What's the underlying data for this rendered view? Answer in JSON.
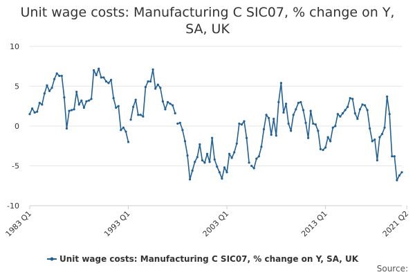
{
  "title": "Unit wage costs: Manufacturing C SIC07, % change on Y, SA, UK",
  "source_label": "Source:",
  "colors": {
    "series": "#206095",
    "grid": "#e6e6e6",
    "axis": "#cccccc",
    "text": "#333333"
  },
  "chart_data": {
    "type": "line",
    "title": "Unit wage costs: Manufacturing C SIC07, % change on Y, SA, UK",
    "xlabel": "",
    "ylabel": "",
    "ylim": [
      -10,
      10
    ],
    "yticks": [
      -10,
      -5,
      0,
      5,
      10
    ],
    "xticks": [
      "1983 Q1",
      "1993 Q1",
      "2003 Q1",
      "2013 Q1",
      "2021 Q2"
    ],
    "x_start": "1983 Q1",
    "x_end": "2021 Q2",
    "gaps_after_index": [
      40,
      59,
      89,
      118
    ],
    "legend_position": "bottom",
    "series": [
      {
        "name": "Unit wage costs: Manufacturing C SIC07, % change on Y, SA, UK",
        "values": [
          1.5,
          2.2,
          1.7,
          1.8,
          2.9,
          2.7,
          4.1,
          5.1,
          4.4,
          4.8,
          5.9,
          6.6,
          6.3,
          6.3,
          3.6,
          -0.3,
          1.9,
          2.0,
          2.1,
          4.3,
          2.7,
          3.2,
          2.3,
          3.1,
          3.2,
          3.4,
          7.0,
          6.4,
          7.2,
          6.1,
          6.1,
          5.6,
          5.4,
          5.8,
          3.5,
          2.3,
          2.5,
          -0.5,
          -0.2,
          -0.7,
          -2.0,
          0.8,
          2.4,
          3.3,
          1.4,
          1.4,
          1.2,
          4.9,
          5.6,
          5.6,
          7.1,
          4.7,
          5.2,
          4.8,
          3.1,
          2.1,
          3.0,
          2.8,
          2.6,
          1.6,
          0.3,
          0.4,
          -0.5,
          -1.9,
          -3.7,
          -6.7,
          -5.6,
          -4.5,
          -3.9,
          -2.3,
          -4.3,
          -4.6,
          -3.5,
          -4.5,
          -1.5,
          -4.2,
          -5.1,
          -5.8,
          -6.6,
          -5.2,
          -5.8,
          -3.5,
          -4.0,
          -3.3,
          -2.2,
          0.3,
          0.2,
          0.6,
          -1.5,
          -4.6,
          -5.0,
          -5.3,
          -4.1,
          -3.8,
          -2.6,
          -0.4,
          1.4,
          1.0,
          -1.1,
          0.9,
          -1.2,
          3.0,
          5.4,
          1.7,
          2.8,
          0.3,
          -0.6,
          1.4,
          2.1,
          2.9,
          3.0,
          2.0,
          0.4,
          -1.5,
          1.9,
          0.3,
          0.2,
          -0.6,
          -2.9,
          -3.0,
          -2.7,
          -1.4,
          -1.9,
          -0.2,
          0.0,
          1.5,
          1.2,
          1.6,
          2.0,
          2.4,
          3.5,
          3.4,
          1.6,
          0.9,
          2.1,
          2.7,
          2.6,
          2.0,
          -0.3,
          -1.9,
          -1.7,
          -4.3,
          -1.4,
          -1.0,
          -0.2,
          3.7,
          1.5,
          -3.8,
          -3.8,
          -6.8,
          -6.2,
          -5.8
        ]
      }
    ]
  }
}
